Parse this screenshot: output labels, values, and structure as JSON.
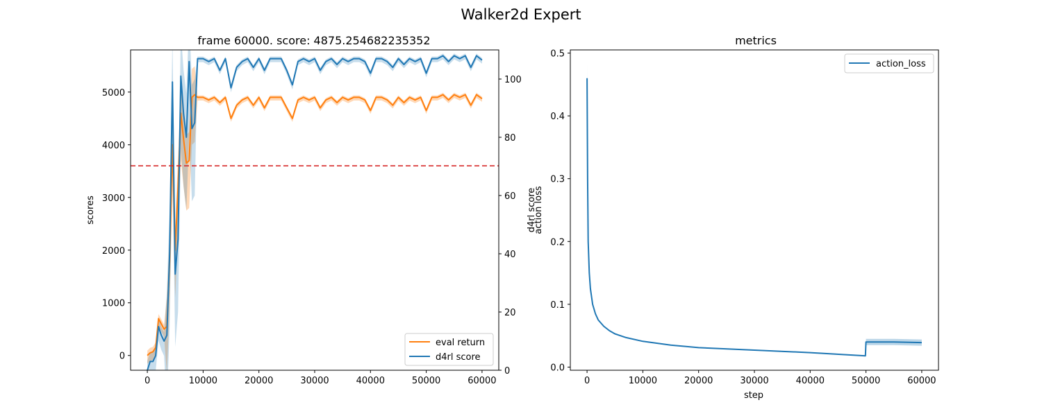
{
  "figure_title": "Walker2d Expert",
  "colors": {
    "eval": "#ff7f0e",
    "d4rl": "#1f77b4",
    "threshold": "#d62728"
  },
  "chart_data": [
    {
      "type": "line",
      "title": "frame 60000. score: 4875.254682235352",
      "xlabel": "",
      "ylabel": "scores",
      "ylabel_right": "d4rl score",
      "xlim": [
        -3000,
        63000
      ],
      "ylim": [
        -280,
        5800
      ],
      "ylim_right": [
        0,
        110
      ],
      "x_ticks": [
        "0",
        "10000",
        "20000",
        "30000",
        "40000",
        "50000",
        "60000"
      ],
      "y_ticks": [
        "0",
        "1000",
        "2000",
        "3000",
        "4000",
        "5000"
      ],
      "y_ticks_right": [
        "0",
        "20",
        "40",
        "60",
        "80",
        "100"
      ],
      "threshold_line": 3600,
      "legend": "lower right",
      "legend_labels": [
        "eval return",
        "d4rl score"
      ],
      "series": [
        {
          "name": "eval return",
          "axis": "left",
          "x": [
            0,
            500,
            1000,
            1500,
            2000,
            2500,
            3000,
            3500,
            4000,
            4500,
            5000,
            5500,
            6000,
            6500,
            7000,
            7500,
            8000,
            8500,
            9000,
            10000,
            11000,
            12000,
            13000,
            14000,
            15000,
            16000,
            17000,
            18000,
            19000,
            20000,
            21000,
            22000,
            23000,
            24000,
            25000,
            26000,
            27000,
            28000,
            29000,
            30000,
            31000,
            32000,
            33000,
            34000,
            35000,
            36000,
            37000,
            38000,
            39000,
            40000,
            41000,
            42000,
            43000,
            44000,
            45000,
            46000,
            47000,
            48000,
            49000,
            50000,
            51000,
            52000,
            53000,
            54000,
            55000,
            56000,
            57000,
            58000,
            59000,
            60000
          ],
          "y": [
            0,
            50,
            70,
            150,
            700,
            600,
            500,
            550,
            1800,
            4000,
            2000,
            3200,
            4600,
            4100,
            3650,
            3700,
            4900,
            4950,
            4900,
            4900,
            4850,
            4900,
            4800,
            4900,
            4500,
            4750,
            4850,
            4900,
            4750,
            4900,
            4700,
            4900,
            4900,
            4900,
            4700,
            4500,
            4850,
            4900,
            4850,
            4900,
            4700,
            4850,
            4900,
            4800,
            4900,
            4850,
            4900,
            4900,
            4850,
            4650,
            4900,
            4900,
            4850,
            4750,
            4900,
            4800,
            4900,
            4850,
            4900,
            4650,
            4900,
            4900,
            4950,
            4850,
            4950,
            4900,
            4950,
            4750,
            4950,
            4875
          ]
        },
        {
          "name": "d4rl score",
          "axis": "right",
          "x": [
            0,
            500,
            1000,
            1500,
            2000,
            2500,
            3000,
            3500,
            4000,
            4500,
            5000,
            5500,
            6000,
            6500,
            7000,
            7500,
            8000,
            8500,
            9000,
            10000,
            11000,
            12000,
            13000,
            14000,
            15000,
            16000,
            17000,
            18000,
            19000,
            20000,
            21000,
            22000,
            23000,
            24000,
            25000,
            26000,
            27000,
            28000,
            29000,
            30000,
            31000,
            32000,
            33000,
            34000,
            35000,
            36000,
            37000,
            38000,
            39000,
            40000,
            41000,
            42000,
            43000,
            44000,
            45000,
            46000,
            47000,
            48000,
            49000,
            50000,
            51000,
            52000,
            53000,
            54000,
            55000,
            56000,
            57000,
            58000,
            59000,
            60000
          ],
          "y": [
            0,
            3,
            3,
            5,
            15,
            12,
            10,
            12,
            40,
            99,
            33,
            45,
            101,
            88,
            80,
            106,
            83,
            85,
            107,
            107,
            106,
            107,
            103,
            107,
            97,
            104,
            106,
            107,
            104,
            107,
            103,
            107,
            107,
            107,
            103,
            98,
            106,
            107,
            106,
            107,
            103,
            106,
            107,
            105,
            107,
            106,
            107,
            107,
            106,
            102,
            107,
            107,
            106,
            104,
            107,
            105,
            107,
            106,
            107,
            102,
            107,
            107,
            108,
            106,
            108,
            107,
            108,
            104,
            108,
            106.5
          ]
        }
      ]
    },
    {
      "type": "line",
      "title": "metrics",
      "xlabel": "step",
      "ylabel": "action loss",
      "xlim": [
        -3000,
        63000
      ],
      "ylim": [
        -0.005,
        0.505
      ],
      "x_ticks": [
        "0",
        "10000",
        "20000",
        "30000",
        "40000",
        "50000",
        "60000"
      ],
      "y_ticks": [
        "0.0",
        "0.1",
        "0.2",
        "0.3",
        "0.4",
        "0.5"
      ],
      "legend": "upper right",
      "legend_labels": [
        "action_loss"
      ],
      "series": [
        {
          "name": "action_loss",
          "x": [
            0,
            100,
            200,
            400,
            600,
            1000,
            1500,
            2000,
            3000,
            4000,
            5000,
            7000,
            10000,
            15000,
            20000,
            30000,
            40000,
            49900,
            50000,
            55000,
            60000
          ],
          "y": [
            0.46,
            0.3,
            0.2,
            0.15,
            0.125,
            0.1,
            0.085,
            0.075,
            0.065,
            0.058,
            0.053,
            0.047,
            0.041,
            0.035,
            0.031,
            0.027,
            0.023,
            0.018,
            0.04,
            0.04,
            0.039
          ]
        }
      ]
    }
  ]
}
